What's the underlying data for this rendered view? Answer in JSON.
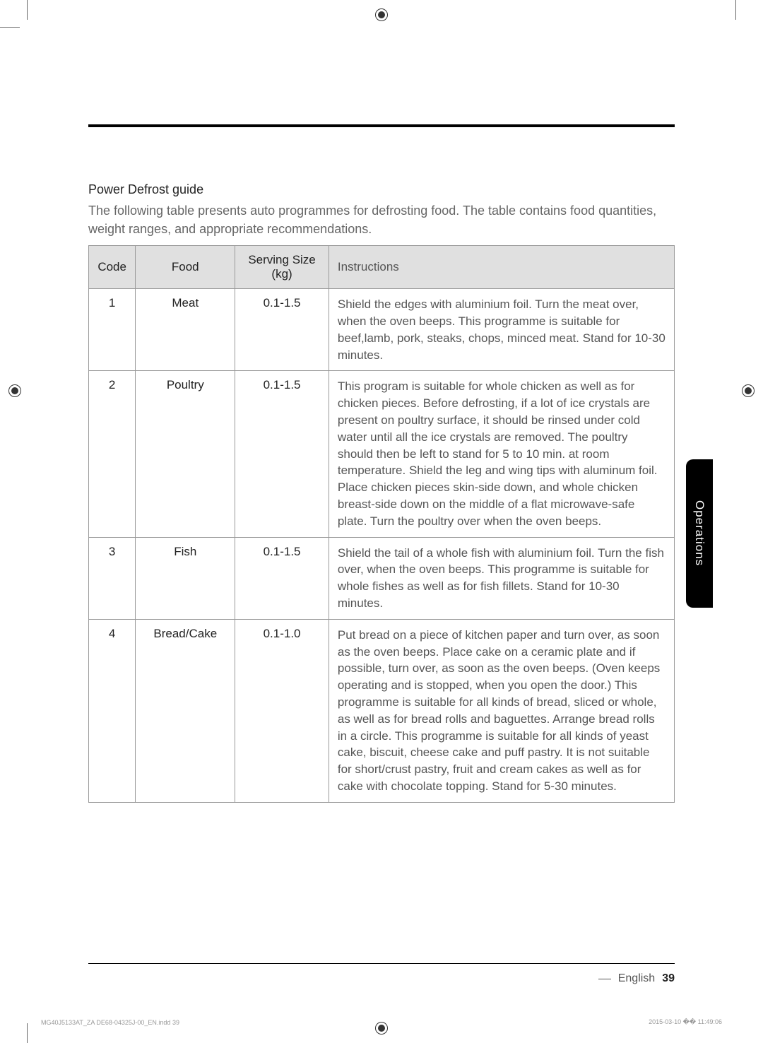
{
  "regMarks": {
    "strokeColor": "#333333",
    "fillColor": "#333333"
  },
  "section": {
    "title": "Power Defrost guide",
    "intro": "The following table presents auto programmes for defrosting food. The table contains food quantities, weight ranges, and appropriate recommendations."
  },
  "table": {
    "headers": {
      "code": "Code",
      "food": "Food",
      "serving": "Serving Size (kg)",
      "instructions": "Instructions"
    },
    "rows": [
      {
        "code": "1",
        "food": "Meat",
        "serving": "0.1-1.5",
        "instructions": "Shield the edges with aluminium foil. Turn the meat over, when the oven beeps. This programme is suitable for beef,lamb, pork, steaks, chops, minced meat. Stand for 10-30 minutes."
      },
      {
        "code": "2",
        "food": "Poultry",
        "serving": "0.1-1.5",
        "instructions": "This program is suitable for whole chicken as well as for chicken pieces. Before defrosting, if a lot of ice crystals are present on poultry surface, it should be rinsed under cold water until all the ice crystals are removed. The poultry should then be left to stand for 5 to 10 min. at room temperature. Shield the leg and wing tips with aluminum foil. Place chicken pieces skin-side down, and whole chicken breast-side down on the middle of a flat microwave-safe plate. Turn the poultry over when the oven beeps."
      },
      {
        "code": "3",
        "food": "Fish",
        "serving": "0.1-1.5",
        "instructions": "Shield the tail of a whole fish with aluminium foil. Turn the fish over, when the oven beeps. This programme is suitable for whole fishes as well as for fish fillets. Stand for 10-30 minutes."
      },
      {
        "code": "4",
        "food": "Bread/Cake",
        "serving": "0.1-1.0",
        "instructions": "Put bread on a piece of kitchen paper and turn over, as soon as the oven beeps. Place cake on a ceramic plate and if possible, turn over, as soon as the oven beeps. (Oven keeps operating and is stopped, when you open the door.) This programme is suitable for all kinds of bread, sliced or whole, as well as for bread rolls and baguettes. Arrange bread rolls in a circle. This programme is suitable for all kinds of yeast cake, biscuit, cheese cake and puff pastry. It is not suitable for short/crust pastry, fruit and cream cakes as well as for cake with chocolate topping. Stand for 5-30 minutes."
      }
    ]
  },
  "sideTab": {
    "label": "Operations"
  },
  "footer": {
    "language": "English",
    "pageNumber": "39"
  },
  "printInfo": {
    "left": "MG40J5133AT_ZA DE68-04325J-00_EN.indd   39",
    "right": "2015-03-10   �� 11:49:06"
  },
  "colors": {
    "textPrimary": "#222222",
    "textSecondary": "#666666",
    "textCell": "#555555",
    "borderColor": "#999999",
    "headerBg": "#e0e0e0",
    "ruleColor": "#000000",
    "tabBg": "#000000",
    "tabText": "#ffffff"
  }
}
